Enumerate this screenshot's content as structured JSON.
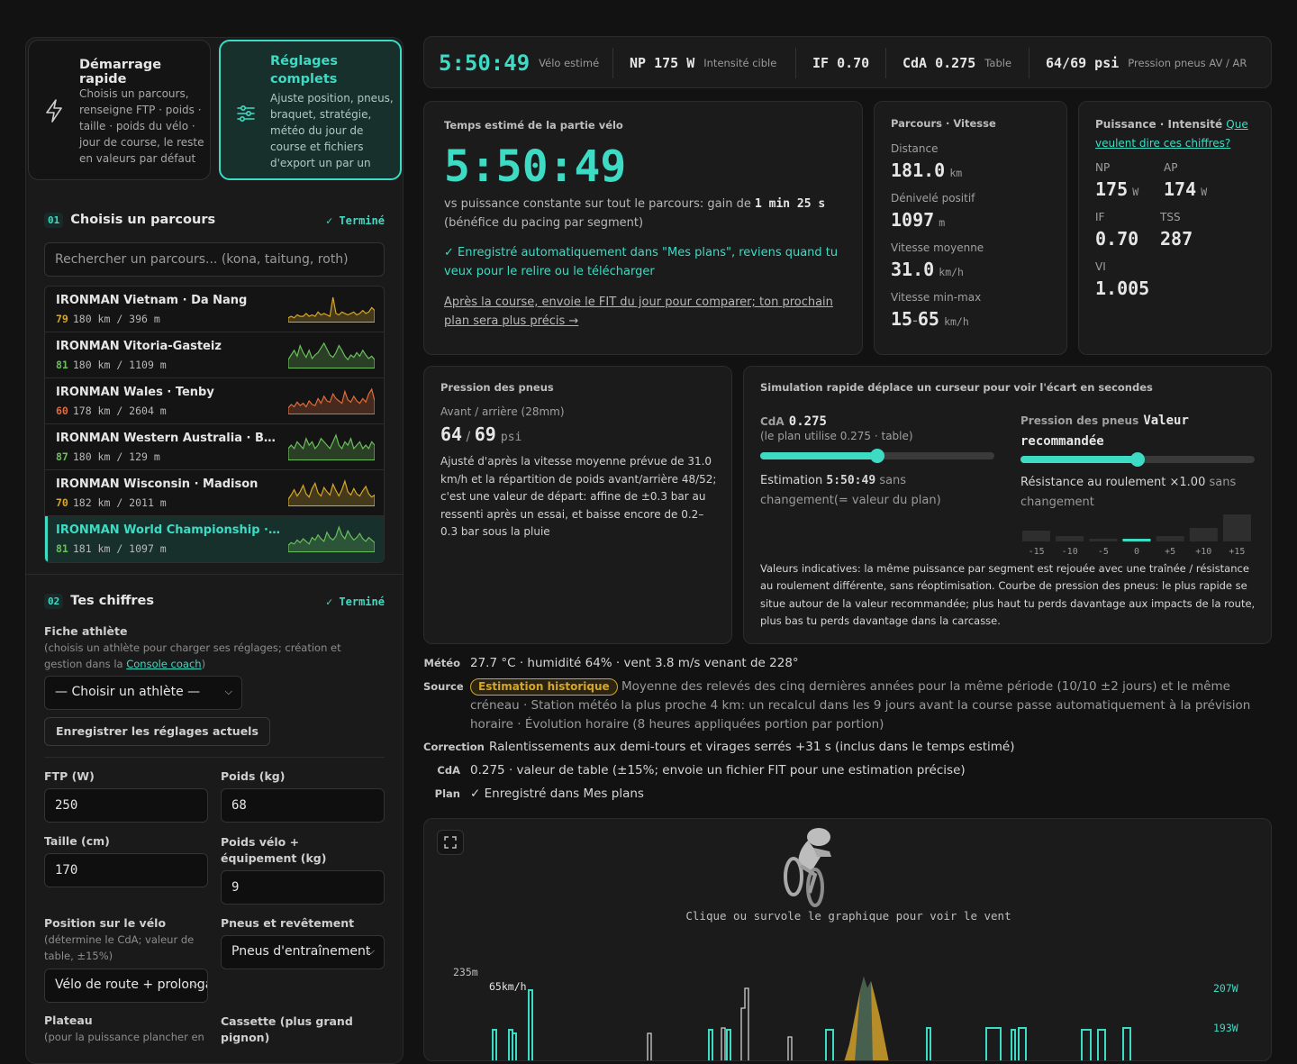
{
  "modes": [
    {
      "title": "Démarrage rapide",
      "desc": "Choisis un parcours, renseigne FTP · poids · taille · poids du vélo · jour de course, le reste en valeurs par défaut",
      "icon": "lightning-icon"
    },
    {
      "title": "Réglages complets",
      "desc": "Ajuste position, pneus, braquet, stratégie, météo du jour de course et fichiers d'export un par un",
      "icon": "sliders-icon"
    }
  ],
  "step1": {
    "num": "01",
    "title": "Choisis un parcours",
    "status": "✓ Terminé",
    "search_placeholder": "Rechercher un parcours... (kona, taitung, roth)"
  },
  "courses": [
    {
      "name": "IRONMAN Vietnam · Da Nang",
      "score": "79",
      "dist": "180 km / 396 m",
      "color": "#d4a62a",
      "profile": [
        2,
        3,
        2,
        4,
        3,
        3,
        5,
        3,
        4,
        3,
        6,
        4,
        5,
        4,
        3,
        16,
        5,
        4,
        6,
        5,
        4,
        5,
        6,
        4,
        5,
        7,
        5,
        6,
        9,
        7
      ],
      "selected": false
    },
    {
      "name": "IRONMAN Vitoria-Gasteiz",
      "score": "81",
      "dist": "180 km / 1109 m",
      "color": "#6abf5a",
      "profile": [
        6,
        10,
        14,
        9,
        18,
        12,
        8,
        14,
        7,
        10,
        12,
        16,
        20,
        15,
        10,
        8,
        12,
        18,
        14,
        9,
        6,
        10,
        8,
        12,
        9,
        14,
        10,
        7,
        9,
        6
      ],
      "selected": false
    },
    {
      "name": "IRONMAN Wales · Tenby",
      "score": "60",
      "dist": "178 km / 2604 m",
      "color": "#e06a3a",
      "profile": [
        4,
        7,
        5,
        9,
        6,
        8,
        5,
        10,
        7,
        6,
        12,
        8,
        14,
        10,
        9,
        16,
        12,
        10,
        8,
        18,
        11,
        9,
        14,
        10,
        8,
        12,
        9,
        16,
        20,
        10
      ],
      "selected": false
    },
    {
      "name": "IRONMAN Western Australia · Busselton",
      "score": "87",
      "dist": "180 km / 129 m",
      "color": "#6abf5a",
      "profile": [
        3,
        4,
        3,
        5,
        4,
        3,
        6,
        4,
        5,
        3,
        4,
        6,
        5,
        4,
        3,
        5,
        7,
        4,
        3,
        5,
        4,
        6,
        3,
        4,
        5,
        3,
        4,
        3,
        5,
        4
      ],
      "selected": false
    },
    {
      "name": "IRONMAN Wisconsin · Madison",
      "score": "70",
      "dist": "182 km / 2011 m",
      "color": "#d4a62a",
      "profile": [
        5,
        9,
        14,
        8,
        12,
        18,
        10,
        7,
        15,
        20,
        11,
        8,
        16,
        12,
        9,
        19,
        13,
        8,
        14,
        22,
        12,
        9,
        15,
        10,
        8,
        13,
        17,
        10,
        7,
        9
      ],
      "selected": false
    },
    {
      "name": "IRONMAN World Championship · Kona",
      "score": "81",
      "dist": "181 km / 1097 m",
      "color": "#6abf5a",
      "profile": [
        4,
        6,
        5,
        8,
        6,
        9,
        7,
        5,
        10,
        8,
        12,
        9,
        7,
        14,
        10,
        8,
        11,
        18,
        12,
        9,
        15,
        11,
        8,
        10,
        13,
        9,
        7,
        10,
        8,
        6
      ],
      "selected": true
    }
  ],
  "step2": {
    "num": "02",
    "title": "Tes chiffres",
    "status": "✓ Terminé",
    "athlete_label": "Fiche athlète",
    "athlete_hint_pre": "(choisis un athlète pour charger ses réglages; création et gestion dans la ",
    "athlete_hint_link": "Console coach",
    "athlete_hint_post": ")",
    "athlete_select": "— Choisir un athlète —",
    "save_button": "Enregistrer les réglages actuels",
    "ftp_label": "FTP  (W)",
    "ftp_value": "250",
    "weight_label": "Poids (kg)",
    "weight_value": "68",
    "height_label": "Taille (cm)",
    "height_value": "170",
    "bike_label": "Poids vélo + équipement (kg)",
    "bike_value": "9",
    "position_label": "Position sur le vélo",
    "position_hint": "(détermine le CdA; valeur de table, ±15%)",
    "position_value": "Vélo de route + prolongateurs",
    "tires_label": "Pneus et revêtement",
    "tires_value": "Pneus d'entraînement",
    "chainring_label": "Plateau",
    "chainring_hint": "(pour la puissance plancher en",
    "cassette_label": "Cassette (plus grand pignon)"
  },
  "topbar": {
    "time": "5:50:49",
    "time_sub": "Vélo estimé",
    "np": "NP 175 W",
    "np_sub": "Intensité cible",
    "if": "IF 0.70",
    "cda": "CdA 0.275",
    "cda_sub": "Table",
    "psi": "64/69 psi",
    "psi_sub": "Pression pneus AV / AR"
  },
  "time_card": {
    "caption": "Temps estimé de la partie vélo",
    "time": "5:50:49",
    "gain_pre": "vs puissance constante sur tout le parcours: gain de ",
    "gain_val": "1 min 25 s",
    "gain_post": "(bénéfice du pacing par segment)",
    "saved": "✓ Enregistré automatiquement dans \"Mes plans\", reviens quand tu veux pour le relire ou le télécharger",
    "fit_link": "Après la course, envoie le FIT du jour pour comparer; ton prochain plan sera plus précis →"
  },
  "course_card": {
    "caption": "Parcours · Vitesse",
    "distance_label": "Distance",
    "distance": "181.0",
    "distance_unit": "km",
    "elev_label": "Dénivelé positif",
    "elev": "1097",
    "elev_unit": "m",
    "speed_label": "Vitesse moyenne",
    "speed": "31.0",
    "speed_unit": "km/h",
    "range_label": "Vitesse min-max",
    "range_min": "15",
    "range_max": "65",
    "range_unit": "km/h"
  },
  "power_card": {
    "caption": "Puissance · Intensité",
    "link": "Que veulent dire ces chiffres?",
    "np_label": "NP",
    "np": "175",
    "np_unit": "W",
    "ap_label": "AP",
    "ap": "174",
    "ap_unit": "W",
    "if_label": "IF",
    "if": "0.70",
    "tss_label": "TSS",
    "tss": "287",
    "vi_label": "VI",
    "vi": "1.005"
  },
  "tire_card": {
    "caption": "Pression des pneus",
    "sub": "Avant / arrière (28mm)",
    "front": "64",
    "rear": "69",
    "unit": "psi",
    "desc": "Ajusté d'après la vitesse moyenne prévue de 31.0 km/h et la répartition de poids avant/arrière 48/52; c'est une valeur de départ: affine de ±0.3 bar au ressenti après un essai, et baisse encore de 0.2–0.3 bar sous la pluie"
  },
  "sim_card": {
    "caption": "Simulation rapide déplace un curseur pour voir l'écart en secondes",
    "cda_label": "CdA",
    "cda_value": "0.275",
    "cda_hint": "(le plan utilise 0.275 · table)",
    "cda_slider": 0.5,
    "estimate_label": "Estimation",
    "estimate_value": "5:50:49",
    "estimate_rest": "sans changement(= valeur du plan)",
    "tire_label": "Pression des pneus",
    "tire_value": "Valeur recommandée",
    "tire_slider": 0.5,
    "rr_label": "Résistance au roulement ×1.00",
    "rr_rest": "sans changement",
    "bars": [
      {
        "label": "-15",
        "value": 0.4
      },
      {
        "label": "-10",
        "value": 0.2
      },
      {
        "label": "-5",
        "value": 0.1
      },
      {
        "label": "0",
        "value": 0.1
      },
      {
        "label": "+5",
        "value": 0.2
      },
      {
        "label": "+10",
        "value": 0.5
      },
      {
        "label": "+15",
        "value": 1.0
      }
    ],
    "footnote": "Valeurs indicatives: la même puissance par segment est rejouée avec une traînée / résistance au roulement différente, sans réoptimisation. Courbe de pression des pneus: le plus rapide se situe autour de la valeur recommandée; plus haut tu perds davantage aux impacts de la route, plus bas tu perds davantage dans la carcasse."
  },
  "meta": {
    "weather_k": "Météo",
    "weather_v": "27.7 °C · humidité 64% · vent 3.8 m/s venant de 228°",
    "source_k": "Source",
    "source_badge": "Estimation historique",
    "source_v": "Moyenne des relevés des cinq dernières années pour la même période (10/10 ±2 jours) et le même créneau · Station météo la plus proche 4 km: un recalcul dans les 9 jours avant la course passe automatiquement à la prévision horaire · Évolution horaire (8 heures appliquées portion par portion)",
    "corr_k": "Correction",
    "corr_v": "Ralentissements aux demi-tours et virages serrés +31 s (inclus dans le temps estimé)",
    "cda_k": "CdA",
    "cda_v": "0.275 · valeur de table (±15%; envoie un fichier FIT pour une estimation précise)",
    "plan_k": "Plan",
    "plan_v": "✓ Enregistré dans Mes plans"
  },
  "graph": {
    "hint": "Clique ou survole le graphique pour voir le vent",
    "elev_label": "235m",
    "speed_label": "65km/h",
    "power_hi": "207W",
    "power_lo": "193W"
  }
}
